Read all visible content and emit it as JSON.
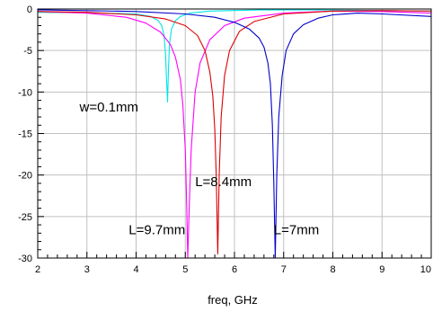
{
  "chart_data": {
    "type": "line",
    "title": "",
    "xlabel": "freq, GHz",
    "ylabel": "",
    "xlim": [
      2,
      10
    ],
    "ylim": [
      -30,
      0
    ],
    "grid": true,
    "x_ticks": [
      2,
      3,
      4,
      5,
      6,
      7,
      8,
      9,
      10
    ],
    "x_tick_labels": [
      "2",
      "3",
      "4",
      "5",
      "6",
      "7",
      "8",
      "9",
      "10"
    ],
    "y_ticks": [
      0,
      -5,
      -10,
      -15,
      -20,
      -25,
      -30
    ],
    "y_tick_labels": [
      "0",
      "-5",
      "-10",
      "-15",
      "-20",
      "-25",
      "-30"
    ],
    "series": [
      {
        "color": "#00e5e5",
        "x": [
          2.0,
          3.0,
          4.0,
          4.3,
          4.45,
          4.52,
          4.57,
          4.6,
          4.62,
          4.64,
          4.66,
          4.68,
          4.72,
          4.8,
          4.9,
          5.1,
          5.5,
          6.5,
          7.5,
          8.5,
          10.0
        ],
        "y": [
          -0.4,
          -0.45,
          -0.6,
          -0.9,
          -1.4,
          -2.0,
          -3.2,
          -5.5,
          -8.5,
          -11.2,
          -7.0,
          -4.2,
          -2.4,
          -1.4,
          -0.9,
          -0.5,
          -0.25,
          -0.12,
          -0.1,
          -0.15,
          -0.25
        ]
      },
      {
        "color": "#ff00ff",
        "x": [
          2.0,
          3.0,
          3.8,
          4.2,
          4.5,
          4.7,
          4.8,
          4.9,
          4.95,
          5.0,
          5.03,
          5.05,
          5.08,
          5.12,
          5.2,
          5.3,
          5.5,
          5.8,
          6.2,
          7.0,
          8.0,
          9.0,
          10.0
        ],
        "y": [
          -0.3,
          -0.5,
          -1.0,
          -1.7,
          -2.8,
          -4.3,
          -5.8,
          -8.5,
          -11.5,
          -17.0,
          -24.0,
          -30.0,
          -24.0,
          -17.0,
          -10.0,
          -6.5,
          -3.7,
          -2.0,
          -1.1,
          -0.5,
          -0.25,
          -0.3,
          -0.5
        ]
      },
      {
        "color": "#dd0000",
        "x": [
          2.0,
          3.0,
          4.0,
          4.6,
          5.0,
          5.25,
          5.4,
          5.5,
          5.56,
          5.6,
          5.63,
          5.66,
          5.69,
          5.73,
          5.8,
          5.9,
          6.1,
          6.4,
          7.0,
          8.0,
          9.0,
          10.0
        ],
        "y": [
          -0.3,
          -0.4,
          -0.7,
          -1.2,
          -2.0,
          -3.2,
          -5.0,
          -7.6,
          -10.5,
          -14.5,
          -20.0,
          -29.5,
          -20.0,
          -13.0,
          -8.0,
          -5.0,
          -2.7,
          -1.5,
          -0.6,
          -0.25,
          -0.2,
          -0.25
        ]
      },
      {
        "color": "#0000cc",
        "x": [
          2.0,
          3.0,
          4.0,
          5.0,
          5.6,
          6.0,
          6.3,
          6.5,
          6.6,
          6.68,
          6.73,
          6.77,
          6.8,
          6.83,
          6.86,
          6.9,
          6.97,
          7.05,
          7.2,
          7.4,
          7.7,
          8.0,
          8.5,
          9.0,
          10.0
        ],
        "y": [
          -0.1,
          -0.2,
          -0.3,
          -0.6,
          -1.0,
          -1.6,
          -2.4,
          -3.5,
          -4.6,
          -6.5,
          -9.0,
          -14.0,
          -21.0,
          -30.0,
          -20.0,
          -13.0,
          -8.0,
          -5.0,
          -3.0,
          -1.9,
          -1.1,
          -0.7,
          -0.5,
          -0.6,
          -0.9
        ]
      }
    ],
    "annotations": [
      {
        "text": "w=0.1mm",
        "x": 2.85,
        "y": -11.8
      },
      {
        "text": "L=8.4mm",
        "x": 5.2,
        "y": -20.8
      },
      {
        "text": "L=9.7mm",
        "x": 3.85,
        "y": -26.6
      },
      {
        "text": "L=7mm",
        "x": 6.8,
        "y": -26.6
      }
    ]
  }
}
